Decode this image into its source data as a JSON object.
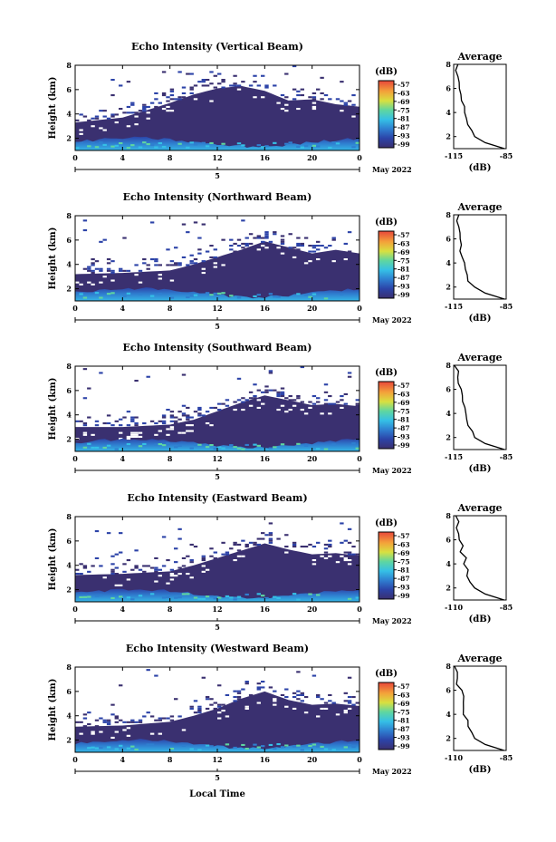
{
  "figure": {
    "xlabel": "Local Time",
    "date_label": "May 2022",
    "day_label": "5",
    "avg_title": "Average",
    "colorbar_unit": "(dB)",
    "avg_xlabel": "(dB)"
  },
  "chart_data": [
    {
      "type": "heatmap",
      "title": "Echo Intensity (Vertical Beam)",
      "ylabel": "Height (km)",
      "x_ticks": [
        "0",
        "4",
        "8",
        "12",
        "16",
        "20",
        "0"
      ],
      "y_ticks": [
        "2",
        "4",
        "6",
        "8"
      ],
      "xlim": [
        0,
        24
      ],
      "ylim": [
        1,
        8
      ],
      "colorbar": {
        "unit": "(dB)",
        "ticks": [
          "-57",
          "-63",
          "-69",
          "-75",
          "-81",
          "-87",
          "-93",
          "-99"
        ]
      },
      "cloud_top_km": [
        [
          0,
          3.3
        ],
        [
          4,
          3.7
        ],
        [
          8,
          4.9
        ],
        [
          10,
          5.6
        ],
        [
          12,
          6.1
        ],
        [
          14,
          6.3
        ],
        [
          16,
          5.9
        ],
        [
          18,
          5.1
        ],
        [
          20,
          5.2
        ],
        [
          22,
          4.8
        ],
        [
          24,
          4.6
        ]
      ],
      "average_profile": {
        "title": "Average",
        "xlabel": "(dB)",
        "xlim": [
          -115,
          -85
        ],
        "x_ticks": [
          "-115",
          "-85"
        ],
        "y_ticks": [
          "2",
          "4",
          "6",
          "8"
        ],
        "height_km": [
          1.0,
          1.5,
          2.0,
          2.5,
          3.0,
          3.5,
          4.0,
          4.5,
          5.0,
          5.5,
          6.0,
          6.5,
          7.0,
          7.5,
          8.0
        ],
        "value_db": [
          -86,
          -97,
          -103,
          -105,
          -107,
          -108,
          -109,
          -108,
          -110,
          -110,
          -111,
          -112,
          -112,
          -113,
          -113
        ]
      }
    },
    {
      "type": "heatmap",
      "title": "Echo Intensity (Northward Beam)",
      "ylabel": "Height (km)",
      "x_ticks": [
        "0",
        "4",
        "8",
        "12",
        "16",
        "20",
        "0"
      ],
      "y_ticks": [
        "2",
        "4",
        "6",
        "8"
      ],
      "xlim": [
        0,
        24
      ],
      "ylim": [
        1,
        8
      ],
      "colorbar": {
        "unit": "(dB)",
        "ticks": [
          "-57",
          "-63",
          "-69",
          "-75",
          "-81",
          "-87",
          "-93",
          "-99"
        ]
      },
      "cloud_top_km": [
        [
          0,
          3.2
        ],
        [
          4,
          3.3
        ],
        [
          8,
          3.5
        ],
        [
          10,
          4.0
        ],
        [
          12,
          4.6
        ],
        [
          14,
          5.2
        ],
        [
          16,
          5.9
        ],
        [
          18,
          5.4
        ],
        [
          20,
          4.9
        ],
        [
          22,
          5.2
        ],
        [
          24,
          4.9
        ]
      ],
      "average_profile": {
        "title": "Average",
        "xlabel": "(dB)",
        "xlim": [
          -115,
          -85
        ],
        "x_ticks": [
          "-115",
          "-85"
        ],
        "y_ticks": [
          "2",
          "4",
          "6",
          "8"
        ],
        "height_km": [
          1.0,
          1.5,
          2.0,
          2.5,
          3.0,
          3.5,
          4.0,
          4.5,
          5.0,
          5.5,
          6.0,
          6.5,
          7.0,
          7.5,
          8.0
        ],
        "value_db": [
          -86,
          -97,
          -103,
          -106,
          -108,
          -109,
          -109,
          -110,
          -111,
          -110,
          -112,
          -112,
          -113,
          -113,
          -113
        ]
      }
    },
    {
      "type": "heatmap",
      "title": "Echo Intensity (Southward Beam)",
      "ylabel": "Height (km)",
      "x_ticks": [
        "0",
        "4",
        "8",
        "12",
        "16",
        "20",
        "0"
      ],
      "y_ticks": [
        "2",
        "4",
        "6",
        "8"
      ],
      "xlim": [
        0,
        24
      ],
      "ylim": [
        1,
        8
      ],
      "colorbar": {
        "unit": "(dB)",
        "ticks": [
          "-57",
          "-63",
          "-69",
          "-75",
          "-81",
          "-87",
          "-93",
          "-99"
        ]
      },
      "cloud_top_km": [
        [
          0,
          3.0
        ],
        [
          4,
          3.0
        ],
        [
          8,
          3.2
        ],
        [
          10,
          3.6
        ],
        [
          12,
          4.3
        ],
        [
          14,
          5.0
        ],
        [
          16,
          5.6
        ],
        [
          18,
          5.2
        ],
        [
          20,
          4.8
        ],
        [
          22,
          4.9
        ],
        [
          24,
          4.7
        ]
      ],
      "average_profile": {
        "title": "Average",
        "xlabel": "(dB)",
        "xlim": [
          -115,
          -85
        ],
        "x_ticks": [
          "-115",
          "-85"
        ],
        "y_ticks": [
          "2",
          "4",
          "6",
          "8"
        ],
        "height_km": [
          1.0,
          1.5,
          2.0,
          2.5,
          3.0,
          3.5,
          4.0,
          4.5,
          5.0,
          5.5,
          6.0,
          6.5,
          7.0,
          7.5,
          8.0
        ],
        "value_db": [
          -86,
          -97,
          -103,
          -105,
          -107,
          -108,
          -109,
          -109,
          -110,
          -111,
          -111,
          -112,
          -113,
          -113,
          -114
        ]
      }
    },
    {
      "type": "heatmap",
      "title": "Echo Intensity (Eastward Beam)",
      "ylabel": "Height (km)",
      "x_ticks": [
        "0",
        "4",
        "8",
        "12",
        "16",
        "20",
        "0"
      ],
      "y_ticks": [
        "2",
        "4",
        "6",
        "8"
      ],
      "xlim": [
        0,
        24
      ],
      "ylim": [
        1,
        8
      ],
      "colorbar": {
        "unit": "(dB)",
        "ticks": [
          "-57",
          "-63",
          "-69",
          "-75",
          "-81",
          "-87",
          "-93",
          "-99"
        ]
      },
      "cloud_top_km": [
        [
          0,
          3.2
        ],
        [
          4,
          3.3
        ],
        [
          8,
          3.5
        ],
        [
          10,
          4.0
        ],
        [
          12,
          4.6
        ],
        [
          14,
          5.2
        ],
        [
          16,
          5.8
        ],
        [
          18,
          5.3
        ],
        [
          20,
          4.9
        ],
        [
          22,
          5.0
        ],
        [
          24,
          4.8
        ]
      ],
      "average_profile": {
        "title": "Average",
        "xlabel": "(dB)",
        "xlim": [
          -110,
          -85
        ],
        "x_ticks": [
          "-110",
          "-85"
        ],
        "y_ticks": [
          "2",
          "4",
          "6",
          "8"
        ],
        "height_km": [
          1.0,
          1.5,
          2.0,
          2.5,
          3.0,
          3.5,
          4.0,
          4.5,
          5.0,
          5.5,
          6.0,
          6.5,
          7.0,
          7.5,
          8.0
        ],
        "value_db": [
          -86,
          -95,
          -100,
          -102,
          -103,
          -104,
          -105,
          -104,
          -106,
          -106,
          -107,
          -107,
          -108,
          -108,
          -109
        ]
      }
    },
    {
      "type": "heatmap",
      "title": "Echo Intensity (Westward Beam)",
      "ylabel": "Height (km)",
      "x_ticks": [
        "0",
        "4",
        "8",
        "12",
        "16",
        "20",
        "0"
      ],
      "y_ticks": [
        "2",
        "4",
        "6",
        "8"
      ],
      "xlim": [
        0,
        24
      ],
      "ylim": [
        1,
        8
      ],
      "colorbar": {
        "unit": "(dB)",
        "ticks": [
          "-57",
          "-63",
          "-69",
          "-75",
          "-81",
          "-87",
          "-93",
          "-99"
        ]
      },
      "cloud_top_km": [
        [
          0,
          3.1
        ],
        [
          4,
          3.2
        ],
        [
          8,
          3.5
        ],
        [
          10,
          4.0
        ],
        [
          12,
          4.6
        ],
        [
          14,
          5.4
        ],
        [
          16,
          6.0
        ],
        [
          18,
          5.3
        ],
        [
          20,
          4.9
        ],
        [
          22,
          5.0
        ],
        [
          24,
          4.8
        ]
      ],
      "average_profile": {
        "title": "Average",
        "xlabel": "(dB)",
        "xlim": [
          -110,
          -85
        ],
        "x_ticks": [
          "-110",
          "-85"
        ],
        "y_ticks": [
          "2",
          "4",
          "6",
          "8"
        ],
        "height_km": [
          1.0,
          1.5,
          2.0,
          2.5,
          3.0,
          3.5,
          4.0,
          4.5,
          5.0,
          5.5,
          6.0,
          6.5,
          7.0,
          7.5,
          8.0
        ],
        "value_db": [
          -86,
          -95,
          -100,
          -102,
          -103,
          -104,
          -105,
          -105,
          -106,
          -106,
          -107,
          -108,
          -108,
          -109,
          -109
        ]
      }
    }
  ]
}
